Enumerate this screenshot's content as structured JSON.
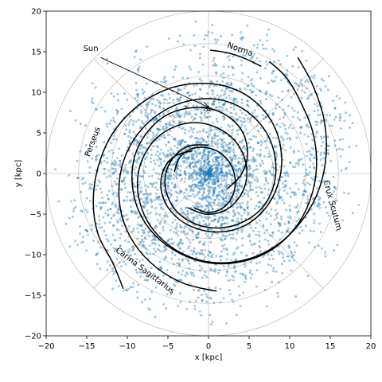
{
  "chart_data": {
    "type": "scatter",
    "xlabel": "x [kpc]",
    "ylabel": "y [kpc]",
    "xlim": [
      -20,
      20
    ],
    "ylim": [
      -20,
      20
    ],
    "xticks": [
      "−20",
      "−15",
      "−10",
      "−5",
      "0",
      "5",
      "10",
      "15",
      "20"
    ],
    "yticks": [
      "−20",
      "−15",
      "−10",
      "−5",
      "0",
      "5",
      "10",
      "15",
      "20"
    ],
    "polar_grid": {
      "rings_kpc": [
        4,
        8,
        12,
        16,
        20
      ],
      "spokes_deg": [
        0,
        45,
        90,
        135,
        180,
        225,
        270,
        315
      ]
    },
    "point_color": "#1f77b4",
    "arm_color": "#000000",
    "sun": {
      "label": "Sun",
      "x": 0,
      "y": 8,
      "label_x": -14.5,
      "label_y": 15.1
    },
    "arm_labels": [
      {
        "text": "Norma",
        "x": 3.8,
        "y": 15.0,
        "angle": 20
      },
      {
        "text": "Perseus",
        "x": -14.0,
        "y": 3.8,
        "angle": -70
      },
      {
        "text": "Crux Scutum",
        "x": 15.0,
        "y": -4.0,
        "angle": 75
      },
      {
        "text": "Carina Sagittarius",
        "x": -8.0,
        "y": -12.2,
        "angle": 37
      }
    ],
    "arms": [
      {
        "name": "arm-a",
        "points": [
          [
            -2.0,
            2.8
          ],
          [
            -4.2,
            2.1
          ],
          [
            -5.6,
            0.3
          ],
          [
            -5.8,
            -2.2
          ],
          [
            -4.6,
            -4.7
          ],
          [
            -2.2,
            -6.5
          ],
          [
            1.0,
            -7.2
          ],
          [
            4.3,
            -6.5
          ],
          [
            7.0,
            -4.3
          ],
          [
            8.6,
            -1.2
          ],
          [
            9.0,
            2.2
          ],
          [
            8.1,
            5.8
          ],
          [
            5.8,
            8.8
          ],
          [
            2.6,
            10.6
          ],
          [
            -1.3,
            11.1
          ],
          [
            -5.3,
            10.3
          ],
          [
            -9.0,
            8.1
          ],
          [
            -11.9,
            4.8
          ],
          [
            -13.6,
            0.8
          ],
          [
            -14.2,
            -3.5
          ],
          [
            -13.6,
            -7.5
          ],
          [
            -11.8,
            -11.0
          ],
          [
            -10.5,
            -14.2
          ]
        ]
      },
      {
        "name": "arm-b",
        "points": [
          [
            2.4,
            -1.8
          ],
          [
            4.0,
            -0.2
          ],
          [
            4.8,
            2.2
          ],
          [
            4.3,
            4.9
          ],
          [
            2.6,
            6.9
          ],
          [
            0.1,
            8.0
          ],
          [
            -2.8,
            8.0
          ],
          [
            -5.5,
            7.0
          ],
          [
            -7.7,
            4.9
          ],
          [
            -9.1,
            2.1
          ],
          [
            -9.4,
            -1.2
          ],
          [
            -8.6,
            -4.6
          ],
          [
            -6.6,
            -7.6
          ],
          [
            -3.6,
            -9.8
          ],
          [
            0.0,
            -11.0
          ],
          [
            3.9,
            -10.9
          ],
          [
            7.6,
            -9.5
          ],
          [
            10.6,
            -6.8
          ],
          [
            12.5,
            -3.3
          ],
          [
            13.3,
            0.7
          ],
          [
            12.9,
            4.9
          ],
          [
            11.4,
            8.7
          ],
          [
            9.6,
            11.8
          ],
          [
            7.5,
            13.8
          ]
        ]
      },
      {
        "name": "arm-c",
        "points": [
          [
            0.0,
            3.5
          ],
          [
            -2.4,
            3.4
          ],
          [
            -4.3,
            2.0
          ],
          [
            -5.3,
            -0.2
          ],
          [
            -5.1,
            -2.6
          ],
          [
            -3.8,
            -4.8
          ],
          [
            -1.4,
            -6.3
          ],
          [
            1.5,
            -6.7
          ],
          [
            4.4,
            -5.9
          ],
          [
            6.8,
            -4.0
          ],
          [
            8.1,
            -1.2
          ],
          [
            8.2,
            2.0
          ],
          [
            7.1,
            5.1
          ],
          [
            4.8,
            7.6
          ],
          [
            1.8,
            9.0
          ],
          [
            -1.6,
            9.1
          ],
          [
            -5.0,
            8.0
          ],
          [
            -8.0,
            5.7
          ],
          [
            -10.1,
            2.5
          ],
          [
            -11.0,
            -1.2
          ],
          [
            -10.7,
            -5.1
          ],
          [
            -9.1,
            -8.7
          ],
          [
            -6.4,
            -11.6
          ],
          [
            -2.9,
            -13.6
          ],
          [
            1.0,
            -14.5
          ]
        ]
      },
      {
        "name": "arm-d",
        "points": [
          [
            -2.6,
            -4.2
          ],
          [
            -0.4,
            -5.0
          ],
          [
            1.9,
            -4.6
          ],
          [
            3.6,
            -3.2
          ],
          [
            4.6,
            -1.1
          ],
          [
            4.6,
            1.3
          ],
          [
            3.6,
            3.6
          ],
          [
            1.7,
            5.3
          ],
          [
            -0.8,
            6.2
          ],
          [
            -3.5,
            6.0
          ],
          [
            -6.0,
            4.7
          ],
          [
            -7.8,
            2.5
          ],
          [
            -8.7,
            -0.3
          ],
          [
            -8.5,
            -3.4
          ],
          [
            -7.2,
            -6.4
          ],
          [
            -4.8,
            -8.9
          ],
          [
            -1.7,
            -10.5
          ],
          [
            1.9,
            -11.0
          ],
          [
            5.6,
            -10.3
          ],
          [
            9.0,
            -8.4
          ],
          [
            11.8,
            -5.4
          ],
          [
            13.7,
            -1.7
          ],
          [
            14.5,
            2.5
          ],
          [
            14.2,
            6.8
          ],
          [
            12.8,
            11.0
          ],
          [
            11.0,
            14.3
          ]
        ]
      },
      {
        "name": "arm-e",
        "points": [
          [
            -1.8,
            -4.2
          ],
          [
            -0.1,
            -4.8
          ],
          [
            1.7,
            -4.3
          ],
          [
            2.9,
            -2.9
          ],
          [
            3.3,
            -1.0
          ],
          [
            2.8,
            1.0
          ],
          [
            1.5,
            2.5
          ],
          [
            -0.3,
            3.2
          ],
          [
            -2.2,
            3.0
          ],
          [
            -3.6,
            1.9
          ],
          [
            -4.2,
            0.2
          ]
        ]
      },
      {
        "name": "arm-f",
        "points": [
          [
            0.2,
            15.2
          ],
          [
            2.2,
            14.9
          ],
          [
            4.4,
            14.2
          ],
          [
            6.5,
            13.2
          ]
        ]
      }
    ],
    "scatter_seed": 7,
    "scatter_count": 3400
  }
}
